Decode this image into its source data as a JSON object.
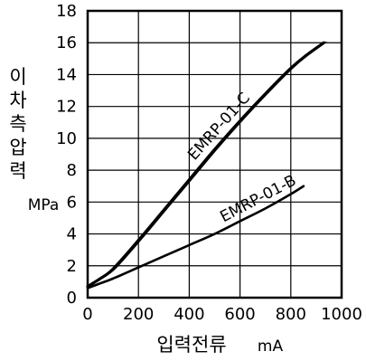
{
  "chart_data": {
    "type": "line",
    "ylabel": "이차측압력",
    "yunit": "MPa",
    "xlabel": "입력전류",
    "xunit": "mA",
    "xlim": [
      0,
      1000
    ],
    "ylim": [
      0,
      18
    ],
    "x_ticks": [
      "0",
      "200",
      "400",
      "600",
      "800",
      "1000"
    ],
    "y_ticks": [
      "0",
      "2",
      "4",
      "6",
      "8",
      "10",
      "12",
      "14",
      "16",
      "18"
    ],
    "grid": true,
    "series": [
      {
        "name": "EMRP-01-C",
        "x": [
          0,
          50,
          100,
          200,
          300,
          400,
          500,
          600,
          700,
          800,
          860,
          930
        ],
        "y": [
          0.7,
          1.2,
          1.8,
          3.6,
          5.5,
          7.4,
          9.3,
          11.1,
          12.8,
          14.4,
          15.2,
          16.0
        ]
      },
      {
        "name": "EMRP-01-B",
        "x": [
          0,
          50,
          100,
          200,
          300,
          400,
          500,
          600,
          700,
          800,
          850
        ],
        "y": [
          0.6,
          0.9,
          1.2,
          1.9,
          2.6,
          3.3,
          4.0,
          4.8,
          5.6,
          6.5,
          7.0
        ]
      }
    ]
  }
}
